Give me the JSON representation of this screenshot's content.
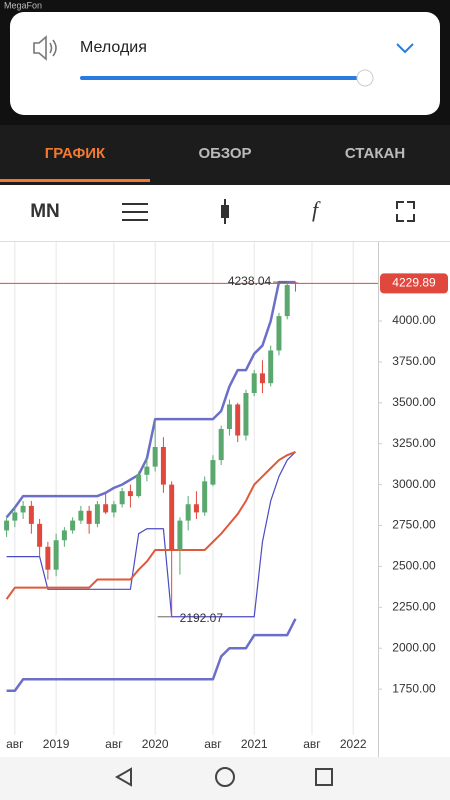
{
  "status_bar": {
    "carrier": "MegaFon"
  },
  "volume_popup": {
    "label": "Мелодия"
  },
  "tabs": [
    "ГРАФИК",
    "ОБЗОР",
    "СТАКАН"
  ],
  "toolbar": {
    "period": "MN"
  },
  "chart_data": {
    "type": "candlestick",
    "x": [
      6,
      7,
      8,
      9,
      10,
      11,
      12,
      13,
      14,
      15,
      16,
      17,
      18,
      19,
      20,
      21,
      22,
      23,
      24,
      25,
      26,
      27,
      28,
      29,
      30,
      31,
      32,
      33,
      34,
      35,
      36,
      37,
      38,
      39,
      40,
      41
    ],
    "open": [
      2720,
      2780,
      2830,
      2870,
      2760,
      2620,
      2480,
      2660,
      2720,
      2780,
      2840,
      2760,
      2880,
      2830,
      2880,
      2960,
      2930,
      3060,
      3110,
      3230,
      3000,
      2600,
      2780,
      2880,
      2830,
      3000,
      3150,
      3340,
      3490,
      3300,
      3560,
      3680,
      3620,
      3820,
      4030,
      4236
    ],
    "high": [
      2800,
      2860,
      2900,
      2900,
      2790,
      2650,
      2700,
      2740,
      2800,
      2870,
      2870,
      2900,
      2950,
      2900,
      2980,
      3000,
      3080,
      3160,
      3400,
      3290,
      3020,
      2800,
      2930,
      2960,
      3050,
      3180,
      3360,
      3520,
      3500,
      3580,
      3700,
      3760,
      3850,
      4050,
      4238.04,
      4238
    ],
    "low": [
      2680,
      2740,
      2790,
      2700,
      2560,
      2420,
      2440,
      2620,
      2700,
      2760,
      2700,
      2740,
      2820,
      2800,
      2860,
      2860,
      2920,
      3020,
      3080,
      2950,
      2192.07,
      2450,
      2720,
      2790,
      2810,
      2990,
      3120,
      3300,
      3260,
      3270,
      3540,
      3560,
      3600,
      3790,
      4010,
      4180
    ],
    "close": [
      2780,
      2830,
      2870,
      2760,
      2620,
      2480,
      2660,
      2720,
      2780,
      2840,
      2760,
      2880,
      2830,
      2880,
      2960,
      2930,
      3060,
      3110,
      3230,
      3000,
      2600,
      2780,
      2880,
      2830,
      3020,
      3150,
      3340,
      3490,
      3300,
      3560,
      3680,
      3620,
      3820,
      4030,
      4220,
      4229.89
    ],
    "up_color": "#5aa86e",
    "down_color": "#e0483e",
    "series": [
      {
        "color": "#6b6fc8",
        "width": 2.5,
        "values": [
          2800,
          2860,
          2930,
          2930,
          2930,
          2930,
          2930,
          2930,
          2930,
          2930,
          2930,
          2930,
          2950,
          2980,
          3000,
          3030,
          3060,
          3160,
          3400,
          3400,
          3400,
          3400,
          3400,
          3400,
          3400,
          3400,
          3450,
          3600,
          3700,
          3700,
          3800,
          3850,
          4000,
          4238.04,
          4238.04,
          4238.04
        ]
      },
      {
        "color": "#4b4bc4",
        "width": 1.2,
        "values": [
          2560,
          2560,
          2560,
          2560,
          2560,
          2360,
          2360,
          2360,
          2360,
          2360,
          2360,
          2360,
          2360,
          2360,
          2360,
          2360,
          2700,
          2730,
          2730,
          2730,
          2192.07,
          2192.07,
          2192.07,
          2192.07,
          2192.07,
          2192.07,
          2192.07,
          2192.07,
          2192.07,
          2192.07,
          2192.07,
          2650,
          2900,
          3050,
          3150,
          3200
        ]
      },
      {
        "color": "#df5a3a",
        "width": 2,
        "values": [
          2300,
          2370,
          2370,
          2370,
          2370,
          2370,
          2370,
          2370,
          2370,
          2370,
          2370,
          2420,
          2420,
          2420,
          2420,
          2420,
          2480,
          2530,
          2600,
          2600,
          2600,
          2600,
          2600,
          2600,
          2600,
          2650,
          2700,
          2760,
          2820,
          2900,
          3000,
          3050,
          3100,
          3150,
          3180,
          3200
        ]
      },
      {
        "color": "#6b6fc8",
        "width": 2.5,
        "values": [
          1740,
          1740,
          1810,
          1810,
          1810,
          1810,
          1810,
          1810,
          1810,
          1810,
          1810,
          1810,
          1810,
          1810,
          1810,
          1810,
          1810,
          1810,
          1810,
          1810,
          1810,
          1810,
          1810,
          1810,
          1810,
          1810,
          1950,
          2000,
          2000,
          2000,
          2080,
          2080,
          2080,
          2080,
          2080,
          2180
        ]
      }
    ],
    "annotations": [
      {
        "x": 40,
        "value": 4238.04
      },
      {
        "x": 26,
        "value": 2192.07
      }
    ],
    "last_price": 4229.89,
    "last_price_color": "#e0483e",
    "xlim": [
      5.2,
      51
    ],
    "xticks": [
      {
        "value": 7,
        "label": "авг"
      },
      {
        "value": 12,
        "label": "2019"
      },
      {
        "value": 19,
        "label": "авг"
      },
      {
        "value": 24,
        "label": "2020"
      },
      {
        "value": 31,
        "label": "авг"
      },
      {
        "value": 36,
        "label": "2021"
      },
      {
        "value": 43,
        "label": "авг"
      },
      {
        "value": 48,
        "label": "2022"
      }
    ],
    "ylim": [
      1335,
      4483
    ],
    "yticks": [
      {
        "value": 1750,
        "label": "1750.00"
      },
      {
        "value": 2000,
        "label": "2000.00"
      },
      {
        "value": 2250,
        "label": "2250.00"
      },
      {
        "value": 2500,
        "label": "2500.00"
      },
      {
        "value": 2750,
        "label": "2750.00"
      },
      {
        "value": 3000,
        "label": "3000.00"
      },
      {
        "value": 3250,
        "label": "3250.00"
      },
      {
        "value": 3500,
        "label": "3500.00"
      },
      {
        "value": 3750,
        "label": "3750.00"
      },
      {
        "value": 4000,
        "label": "4000.00"
      }
    ],
    "grid": true
  }
}
